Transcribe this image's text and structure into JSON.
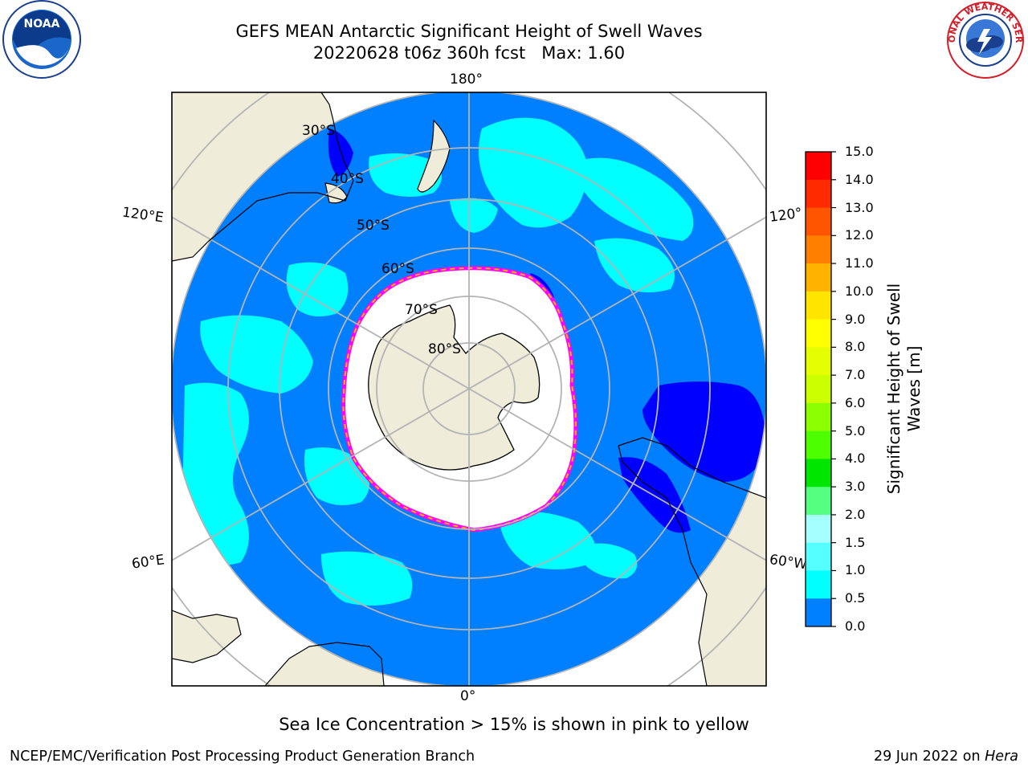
{
  "title": {
    "line1": "GEFS MEAN Antarctic Significant Height of Swell Waves",
    "line2": "20220628 t06z 360h fcst   Max: 1.60"
  },
  "logos": {
    "left": {
      "icon": "noaa-logo",
      "text": "NOAA"
    },
    "right": {
      "icon": "nws-logo",
      "text": "NATIONAL WEATHER SERVICE"
    }
  },
  "map": {
    "projection": "south-polar-stereographic",
    "longitude_labels": {
      "top": "180°",
      "bottom": "0°",
      "left_upper": "120°E",
      "left_lower": "60°E",
      "right_upper": "120°",
      "right_lower": "60°W"
    },
    "latitude_labels": [
      "30°S",
      "40°S",
      "50°S",
      "60°S",
      "70°S",
      "80°S"
    ],
    "colors": {
      "ocean_low": "#0080ff",
      "ocean_mid": "#00ffff",
      "ocean_min": "#0000ff",
      "land": "#efecd9",
      "sea_ice": "#ffffff",
      "ice_edge": "#ff00ff",
      "grid": "#b4b4b4"
    }
  },
  "colorbar": {
    "label_line1": "Significant Height of Swell",
    "label_line2": "Waves [m]",
    "ticks": [
      "15.0",
      "14.0",
      "13.0",
      "12.0",
      "11.0",
      "10.0",
      "9.0",
      "8.0",
      "7.0",
      "6.0",
      "5.0",
      "4.0",
      "3.0",
      "2.0",
      "1.5",
      "1.0",
      "0.5",
      "0.0"
    ],
    "colors": [
      "#ff0000",
      "#ff2a00",
      "#ff5500",
      "#ff8000",
      "#ffb300",
      "#ffe500",
      "#ffff00",
      "#e6ff00",
      "#ccff00",
      "#8cff00",
      "#4dff00",
      "#00e600",
      "#55ff7f",
      "#a6ffff",
      "#55ffff",
      "#00ffff",
      "#0080ff",
      "#0000ff"
    ]
  },
  "caption": "Sea Ice Concentration > 15% is shown in pink to yellow",
  "footer": {
    "left": "NCEP/EMC/Verification Post Processing Product Generation Branch",
    "right_prefix": "29 Jun 2022 on ",
    "right_machine": "Hera"
  }
}
